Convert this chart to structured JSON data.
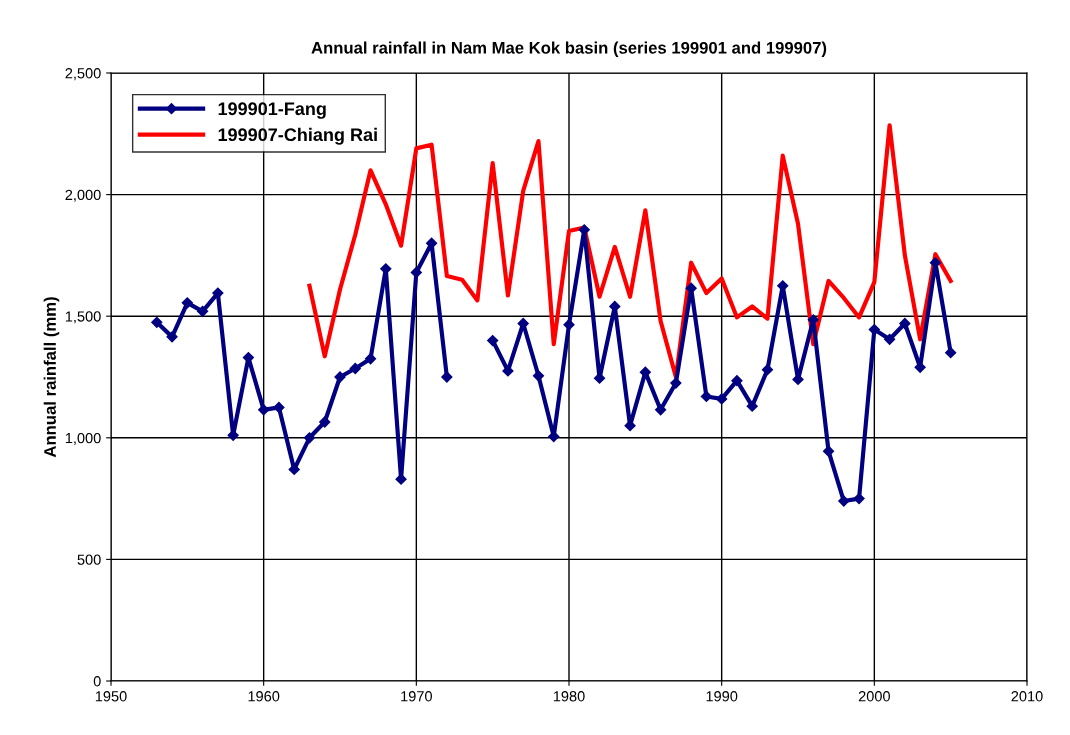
{
  "chart_data": {
    "type": "line",
    "title": "Annual rainfall in Nam Mae Kok basin (series 199901 and 199907)",
    "ylabel": "Annual rainfall (mm)",
    "xlim": [
      1950,
      2010
    ],
    "xticks": [
      1950,
      1960,
      1970,
      1980,
      1990,
      2000,
      2010
    ],
    "ylim": [
      0,
      2500
    ],
    "yticks": [
      0,
      500,
      {
        "value": 1000,
        "label": "1,000"
      },
      {
        "value": 1500,
        "label": "1,500"
      },
      {
        "value": 2000,
        "label": "2,000"
      },
      {
        "value": 2500,
        "label": "2,500"
      }
    ],
    "grid": true,
    "legend": "top left",
    "series": [
      {
        "name": "199901-Fang",
        "color": "#000080",
        "marker": "diamond",
        "x": [
          1953,
          1954,
          1955,
          1956,
          1957,
          1958,
          1959,
          1960,
          1961,
          1962,
          1963,
          1964,
          1965,
          1966,
          1967,
          1968,
          1969,
          1970,
          1971,
          1972,
          1973,
          1974,
          1975,
          1976,
          1977,
          1978,
          1979,
          1980,
          1981,
          1982,
          1983,
          1984,
          1985,
          1986,
          1987,
          1988,
          1989,
          1990,
          1991,
          1992,
          1993,
          1994,
          1995,
          1996,
          1997,
          1998,
          1999,
          2000,
          2001,
          2002,
          2003,
          2004,
          2005
        ],
        "values": [
          1475,
          1415,
          1555,
          1520,
          1595,
          1010,
          1330,
          1115,
          1125,
          870,
          1000,
          1065,
          1250,
          1285,
          1325,
          1695,
          830,
          1680,
          1800,
          1250,
          null,
          null,
          1400,
          1275,
          1470,
          1255,
          1005,
          1465,
          1855,
          1245,
          1540,
          1050,
          1270,
          1115,
          1225,
          1615,
          1170,
          1160,
          1235,
          1130,
          1280,
          1625,
          1240,
          1485,
          945,
          740,
          750,
          1445,
          1405,
          1470,
          1290,
          1720,
          1350
        ]
      },
      {
        "name": "199907-Chiang Rai",
        "color": "#ff0000",
        "marker": "none",
        "x": [
          1963,
          1964,
          1965,
          1966,
          1967,
          1968,
          1969,
          1970,
          1971,
          1972,
          1973,
          1974,
          1975,
          1976,
          1977,
          1978,
          1979,
          1980,
          1981,
          1982,
          1983,
          1984,
          1985,
          1986,
          1987,
          1988,
          1989,
          1990,
          1991,
          1992,
          1993,
          1994,
          1995,
          1996,
          1997,
          1998,
          1999,
          2000,
          2001,
          2002,
          2003,
          2004,
          2005
        ],
        "values": [
          1625,
          1335,
          1610,
          1835,
          2100,
          1960,
          1790,
          2190,
          2205,
          1665,
          1650,
          1565,
          2130,
          1585,
          2015,
          2220,
          1385,
          1850,
          1865,
          1580,
          1785,
          1580,
          1935,
          1480,
          1250,
          1720,
          1595,
          1655,
          1495,
          1540,
          1490,
          2160,
          1880,
          1385,
          1645,
          1575,
          1495,
          1640,
          2285,
          1750,
          1405,
          1755,
          1645
        ]
      }
    ]
  }
}
